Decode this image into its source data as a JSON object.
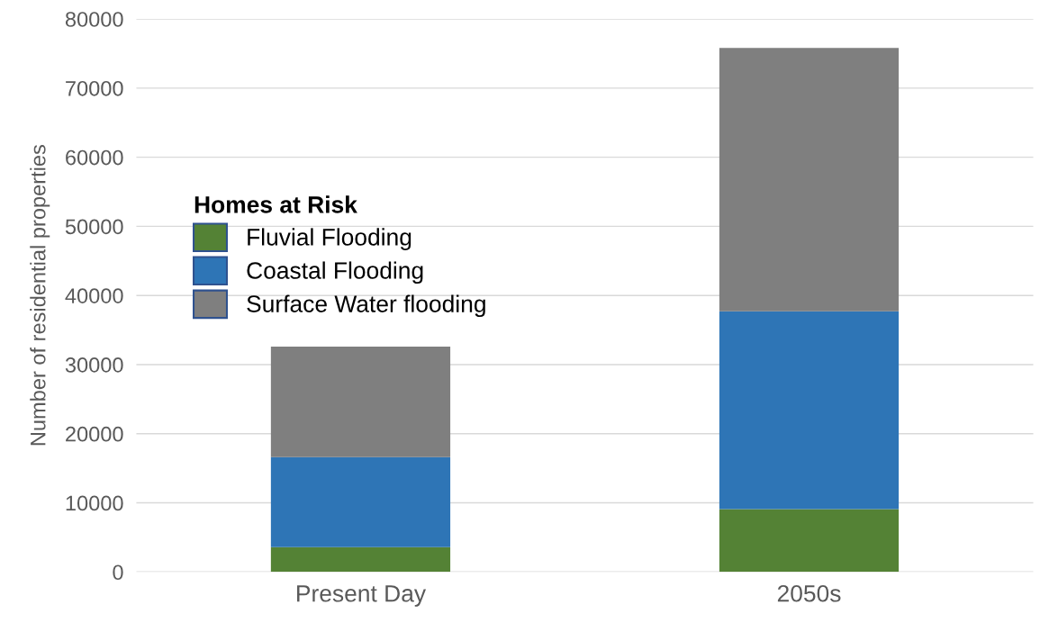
{
  "chart_data": {
    "type": "bar",
    "stacked": true,
    "ylabel": "Number of residential properties",
    "legend_title": "Homes at Risk",
    "categories": [
      "Present Day",
      "2050s"
    ],
    "series": [
      {
        "name": "Fluvial Flooding",
        "color": "#548235",
        "values": [
          3600,
          9100
        ]
      },
      {
        "name": "Coastal Flooding",
        "color": "#2e75b6",
        "values": [
          13000,
          28600
        ]
      },
      {
        "name": "Surface Water flooding",
        "color": "#7f7f7f",
        "values": [
          16000,
          38100
        ]
      }
    ],
    "ylim": [
      0,
      80000
    ],
    "yticks": [
      0,
      10000,
      20000,
      30000,
      40000,
      50000,
      60000,
      70000,
      80000
    ],
    "grid": "y",
    "legend": "left"
  }
}
